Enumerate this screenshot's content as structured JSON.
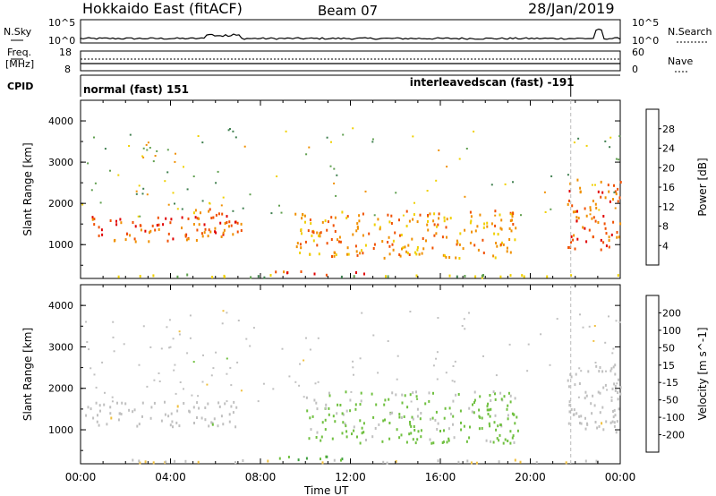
{
  "header": {
    "radar": "Hokkaido East (fitACF)",
    "beam": "Beam 07",
    "date": "28/Jan/2019"
  },
  "left_labels": {
    "nsky": "N.Sky",
    "freq_line1": "Freq.",
    "freq_line2": "[MHz]",
    "cpid": "CPID"
  },
  "right_labels": {
    "nsearch": "N.Search",
    "nave": "Nave"
  },
  "noise_panel": {
    "left_ticks": [
      "10^5",
      "10^0"
    ],
    "right_ticks": [
      "10^5",
      "10^0"
    ]
  },
  "freq_panel": {
    "left_ticks": [
      "18",
      "8"
    ],
    "right_ticks": [
      "60",
      "0"
    ]
  },
  "cpid_panel": {
    "segments": [
      {
        "label": "normal (fast) 151",
        "start_hour": 0,
        "end_hour": 21.8
      },
      {
        "label": "interleavedscan (fast) -191",
        "start_hour": 21.8,
        "end_hour": 24
      }
    ]
  },
  "axes": {
    "ylabel": "Slant Range [km]",
    "xlabel": "Time UT",
    "yticks": [
      "1000",
      "2000",
      "3000",
      "4000"
    ],
    "xticks": [
      "00:00",
      "04:00",
      "08:00",
      "12:00",
      "16:00",
      "20:00",
      "00:00"
    ]
  },
  "colors": {
    "power": [
      "#1010e0",
      "#2050b0",
      "#408050",
      "#60a050",
      "#f0d000",
      "#f09000",
      "#f05000",
      "#e00000"
    ],
    "velocity": [
      "#e00000",
      "#f05000",
      "#f09000",
      "#f0c040",
      "#c0c0c0",
      "#70c040",
      "#40a040",
      "#206040",
      "#2040b0"
    ]
  },
  "chart_data": [
    {
      "type": "heatmap",
      "title": "",
      "xlabel": "Time UT",
      "ylabel": "Slant Range [km]",
      "xlim": [
        0,
        24
      ],
      "ylim": [
        180,
        4500
      ],
      "colorbar": {
        "label": "Power [dB]",
        "ticks": [
          "4",
          "8",
          "12",
          "16",
          "20",
          "24",
          "28"
        ],
        "range": [
          0,
          32
        ]
      },
      "regions": [
        {
          "x": [
            0.2,
            7.0
          ],
          "y": [
            1100,
            1700
          ],
          "value": 26
        },
        {
          "x": [
            5.0,
            7.2
          ],
          "y": [
            1300,
            1900
          ],
          "value": 24
        },
        {
          "x": [
            8.3,
            13.0
          ],
          "y": [
            290,
            390
          ],
          "value": 27
        },
        {
          "x": [
            9.5,
            19.5
          ],
          "y": [
            700,
            1850
          ],
          "value": 22
        },
        {
          "x": [
            21.6,
            24.0
          ],
          "y": [
            900,
            2600
          ],
          "value": 25
        },
        {
          "x": [
            0.0,
            24.0
          ],
          "y": [
            230,
            300
          ],
          "value": 15
        }
      ]
    },
    {
      "type": "heatmap",
      "title": "",
      "xlabel": "Time UT",
      "ylabel": "Slant Range [km]",
      "xlim": [
        0,
        24
      ],
      "ylim": [
        180,
        4500
      ],
      "colorbar": {
        "label": "Velocity [m s^-1]",
        "ticks": [
          "-200",
          "-100",
          "-50",
          "-15",
          "15",
          "50",
          "100",
          "200"
        ],
        "range": [
          -250,
          250
        ]
      },
      "regions": [
        {
          "x": [
            0.2,
            7.0
          ],
          "y": [
            1100,
            1700
          ],
          "value": 0
        },
        {
          "x": [
            8.3,
            13.0
          ],
          "y": [
            290,
            390
          ],
          "value": 60
        },
        {
          "x": [
            10.0,
            19.5
          ],
          "y": [
            700,
            1950
          ],
          "value": 40
        },
        {
          "x": [
            21.6,
            24.0
          ],
          "y": [
            900,
            2600
          ],
          "value": 0
        },
        {
          "x": [
            0.0,
            24.0
          ],
          "y": [
            230,
            300
          ],
          "value": -30
        }
      ]
    }
  ]
}
